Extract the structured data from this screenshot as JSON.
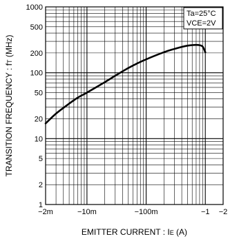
{
  "chart_data": {
    "type": "line",
    "xlabel": "EMITTER CURRENT : I",
    "xlabel_sub": "E",
    "xlabel_unit": " (A)",
    "ylabel": "TRANSITION FREQUENCY : f",
    "ylabel_sub": "T",
    "ylabel_unit": " (MHz)",
    "x_scale": "log",
    "y_scale": "log",
    "x_ticks": [
      "−2m",
      "−10m",
      "−100m",
      "−1",
      "−2"
    ],
    "y_ticks": [
      "1",
      "2",
      "5",
      "10",
      "20",
      "50",
      "100",
      "200",
      "500",
      "1000"
    ],
    "xlim": [
      -0.002,
      -2
    ],
    "ylim": [
      1,
      1000
    ],
    "grid": true,
    "conditions": [
      "Ta=25°C",
      "VCE=2V"
    ],
    "series": [
      {
        "x": [
          -0.002,
          -0.003,
          -0.005,
          -0.007,
          -0.01,
          -0.02,
          -0.03,
          -0.05,
          -0.07,
          -0.1,
          -0.2,
          -0.3,
          -0.4,
          -0.5,
          -0.6,
          -0.7,
          -0.8,
          -0.9,
          -1.0
        ],
        "y": [
          17,
          24,
          34,
          42,
          50,
          72,
          90,
          118,
          138,
          160,
          205,
          230,
          247,
          258,
          263,
          265,
          262,
          250,
          205
        ]
      }
    ]
  }
}
